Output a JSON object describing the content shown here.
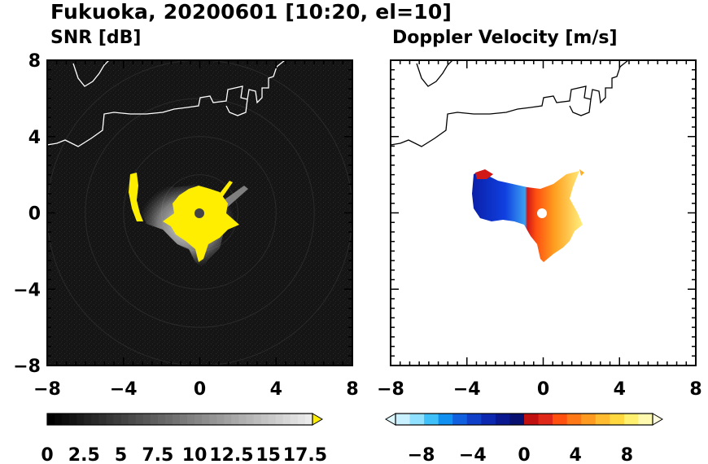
{
  "figure": {
    "title": "Fukuoka, 20200601 [10:20, el=10]"
  },
  "colors": {
    "snr_background": "#141414",
    "snr_saturated": "#ffee00",
    "snr_echo": "#c8c8c8",
    "coastline_on_dark": "#ffffff",
    "coastline_on_light": "#000000",
    "velocity_negative": "#1030d0",
    "velocity_positive": "#ff7a10"
  },
  "chart_data": [
    {
      "type": "heatmap",
      "title": "SNR [dB]",
      "xlabel": "",
      "ylabel": "",
      "xlim": [
        -8,
        8
      ],
      "ylim": [
        -8,
        8
      ],
      "x_ticks": [
        "−8",
        "−4",
        "0",
        "4",
        "8"
      ],
      "y_ticks": [
        "8",
        "4",
        "0",
        "−4",
        "−8"
      ],
      "colorbar": {
        "ticks": [
          "0",
          "2.5",
          "5",
          "7.5",
          "10",
          "12.5",
          "15",
          "17.5"
        ],
        "values": [
          0,
          2.5,
          5,
          7.5,
          10,
          12.5,
          15,
          17.5
        ],
        "range": [
          0,
          18
        ],
        "extend": "max",
        "colormap": "gray",
        "over_color": "yellow"
      },
      "radar_center": [
        0,
        0
      ],
      "echo_description": "strong echoes clustered within ~4 km west and near the radar"
    },
    {
      "type": "heatmap",
      "title": "Doppler Velocity [m/s]",
      "xlabel": "",
      "ylabel": "",
      "xlim": [
        -8,
        8
      ],
      "ylim": [
        -8,
        8
      ],
      "x_ticks": [
        "−8",
        "−4",
        "0",
        "4",
        "8"
      ],
      "colorbar": {
        "ticks": [
          "−8",
          "−4",
          "0",
          "4",
          "8"
        ],
        "values": [
          -8,
          -4,
          0,
          4,
          8
        ],
        "range": [
          -10,
          10
        ],
        "extend": "both",
        "colormap": "blue-to-yellow diverging"
      },
      "radar_center": [
        0,
        0
      ]
    }
  ]
}
